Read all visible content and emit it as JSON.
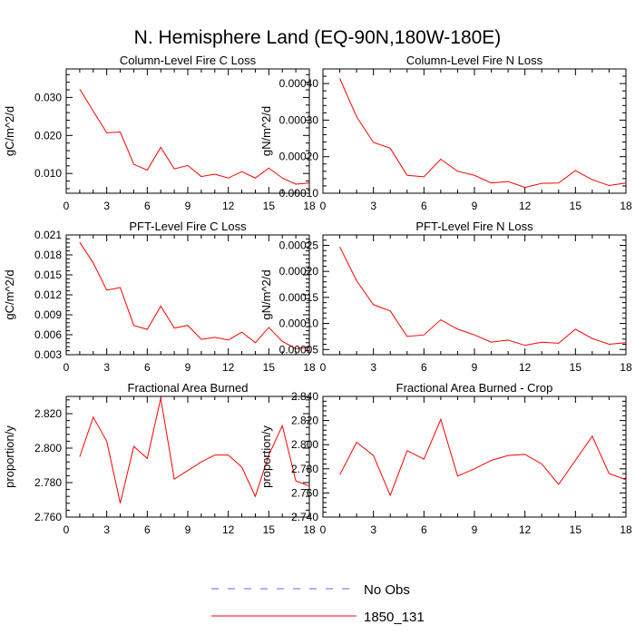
{
  "title": "N. Hemisphere Land (EQ-90N,180W-180E)",
  "colors": {
    "series": "#ff0000",
    "no_obs": "#6a6ad0",
    "frame": "#000000"
  },
  "legend": {
    "placement": "bottom-center",
    "entries": [
      {
        "label": "No Obs",
        "style": "dashed",
        "color": "#6a6ad0"
      },
      {
        "label": "1850_131",
        "style": "solid",
        "color": "#ff0000"
      }
    ]
  },
  "chart_data": [
    {
      "type": "line",
      "title": "Column-Level Fire C Loss",
      "ylabel": "gC/m^2/d",
      "xlim": [
        0,
        18
      ],
      "ylim": [
        0.0048,
        0.0375
      ],
      "xticks": [
        0,
        3,
        6,
        9,
        12,
        15,
        18
      ],
      "xtick_labels": [
        "0",
        "3",
        "6",
        "9",
        "12",
        "15",
        "18"
      ],
      "yticks": [
        0.01,
        0.02,
        0.03
      ],
      "ytick_labels": [
        "0.010",
        "0.020",
        "0.030"
      ],
      "series": [
        {
          "name": "1850_131",
          "x": [
            1,
            2,
            3,
            4,
            5,
            6,
            7,
            8,
            9,
            10,
            11,
            12,
            13,
            14,
            15,
            16,
            17,
            18
          ],
          "values": [
            0.0322,
            0.0264,
            0.0207,
            0.0209,
            0.0124,
            0.0109,
            0.0169,
            0.0112,
            0.0121,
            0.0092,
            0.0098,
            0.0088,
            0.0105,
            0.0088,
            0.0114,
            0.0088,
            0.0072,
            0.0075
          ]
        }
      ]
    },
    {
      "type": "line",
      "title": "Column-Level Fire N Loss",
      "ylabel": "gN/m^2/d",
      "xlim": [
        0,
        18
      ],
      "ylim": [
        0.0001,
        0.00044
      ],
      "xticks": [
        0,
        3,
        6,
        9,
        12,
        15,
        18
      ],
      "xtick_labels": [
        "0",
        "3",
        "6",
        "9",
        "12",
        "15",
        "18"
      ],
      "yticks": [
        0.0001,
        0.0002,
        0.0003,
        0.0004
      ],
      "ytick_labels": [
        "0.00010",
        "0.00020",
        "0.00030",
        "0.00040"
      ],
      "series": [
        {
          "name": "1850_131",
          "x": [
            1,
            2,
            3,
            4,
            5,
            6,
            7,
            8,
            9,
            10,
            11,
            12,
            13,
            14,
            15,
            16,
            17,
            18
          ],
          "values": [
            0.000414,
            0.000309,
            0.000239,
            0.000223,
            0.000149,
            0.000145,
            0.000193,
            0.00016,
            0.000149,
            0.000128,
            0.000132,
            0.000116,
            0.000127,
            0.000128,
            0.000162,
            0.000137,
            0.000121,
            0.000128
          ]
        }
      ]
    },
    {
      "type": "line",
      "title": "PFT-Level Fire C Loss",
      "ylabel": "gC/m^2/d",
      "xlim": [
        0,
        18
      ],
      "ylim": [
        0.003,
        0.021
      ],
      "xticks": [
        0,
        3,
        6,
        9,
        12,
        15,
        18
      ],
      "xtick_labels": [
        "0",
        "3",
        "6",
        "9",
        "12",
        "15",
        "18"
      ],
      "yticks": [
        0.003,
        0.006,
        0.009,
        0.012,
        0.015,
        0.018,
        0.021
      ],
      "ytick_labels": [
        "0.003",
        "0.006",
        "0.009",
        "0.012",
        "0.015",
        "0.018",
        "0.021"
      ],
      "series": [
        {
          "name": "1850_131",
          "x": [
            1,
            2,
            3,
            4,
            5,
            6,
            7,
            8,
            9,
            10,
            11,
            12,
            13,
            14,
            15,
            16,
            17,
            18
          ],
          "values": [
            0.0199,
            0.0168,
            0.0127,
            0.0131,
            0.0074,
            0.0068,
            0.0103,
            0.007,
            0.0074,
            0.0053,
            0.0056,
            0.0052,
            0.0064,
            0.0048,
            0.0071,
            0.005,
            0.0039,
            0.0041
          ]
        }
      ]
    },
    {
      "type": "line",
      "title": "PFT-Level Fire N Loss",
      "ylabel": "gN/m^2/d",
      "xlim": [
        0,
        18
      ],
      "ylim": [
        4e-05,
        0.00027
      ],
      "xticks": [
        0,
        3,
        6,
        9,
        12,
        15,
        18
      ],
      "xtick_labels": [
        "0",
        "3",
        "6",
        "9",
        "12",
        "15",
        "18"
      ],
      "yticks": [
        5e-05,
        0.0001,
        0.00015,
        0.0002,
        0.00025
      ],
      "ytick_labels": [
        "0.00005",
        "0.00010",
        "0.00015",
        "0.00020",
        "0.00025"
      ],
      "series": [
        {
          "name": "1850_131",
          "x": [
            1,
            2,
            3,
            4,
            5,
            6,
            7,
            8,
            9,
            10,
            11,
            12,
            13,
            14,
            15,
            16,
            17,
            18
          ],
          "values": [
            0.000247,
            0.000182,
            0.000136,
            0.000124,
            7.5e-05,
            7.8e-05,
            0.000107,
            8.9e-05,
            7.8e-05,
            6.4e-05,
            6.8e-05,
            5.8e-05,
            6.4e-05,
            6.2e-05,
            8.9e-05,
            7.1e-05,
            6e-05,
            6.3e-05
          ]
        }
      ]
    },
    {
      "type": "line",
      "title": "Fractional Area Burned",
      "ylabel": "proportion/y",
      "xlim": [
        0,
        18
      ],
      "ylim": [
        2.76,
        2.83
      ],
      "xticks": [
        0,
        3,
        6,
        9,
        12,
        15,
        18
      ],
      "xtick_labels": [
        "0",
        "3",
        "6",
        "9",
        "12",
        "15",
        "18"
      ],
      "yticks": [
        2.76,
        2.78,
        2.8,
        2.82
      ],
      "ytick_labels": [
        "2.760",
        "2.780",
        "2.800",
        "2.820"
      ],
      "series": [
        {
          "name": "1850_131",
          "x": [
            1,
            2,
            3,
            4,
            5,
            6,
            7,
            8,
            9,
            10,
            11,
            12,
            13,
            14,
            15,
            16,
            17,
            18
          ],
          "values": [
            2.795,
            2.818,
            2.804,
            2.768,
            2.801,
            2.794,
            2.829,
            2.782,
            2.787,
            2.792,
            2.796,
            2.796,
            2.789,
            2.772,
            2.796,
            2.813,
            2.781,
            2.778
          ]
        }
      ]
    },
    {
      "type": "line",
      "title": "Fractional Area Burned - Crop",
      "ylabel": "proportion/y",
      "xlim": [
        0,
        18
      ],
      "ylim": [
        2.74,
        2.84
      ],
      "xticks": [
        0,
        3,
        6,
        9,
        12,
        15,
        18
      ],
      "xtick_labels": [
        "0",
        "3",
        "6",
        "9",
        "12",
        "15",
        "18"
      ],
      "yticks": [
        2.74,
        2.76,
        2.78,
        2.8,
        2.82,
        2.84
      ],
      "ytick_labels": [
        "2.740",
        "2.760",
        "2.780",
        "2.800",
        "2.820",
        "2.840"
      ],
      "series": [
        {
          "name": "1850_131",
          "x": [
            1,
            2,
            3,
            4,
            5,
            6,
            7,
            8,
            9,
            10,
            11,
            12,
            13,
            14,
            15,
            16,
            17,
            18
          ],
          "values": [
            2.775,
            2.802,
            2.791,
            2.758,
            2.795,
            2.788,
            2.821,
            2.774,
            2.78,
            2.787,
            2.791,
            2.792,
            2.784,
            2.767,
            2.787,
            2.807,
            2.776,
            2.771
          ]
        }
      ]
    }
  ]
}
